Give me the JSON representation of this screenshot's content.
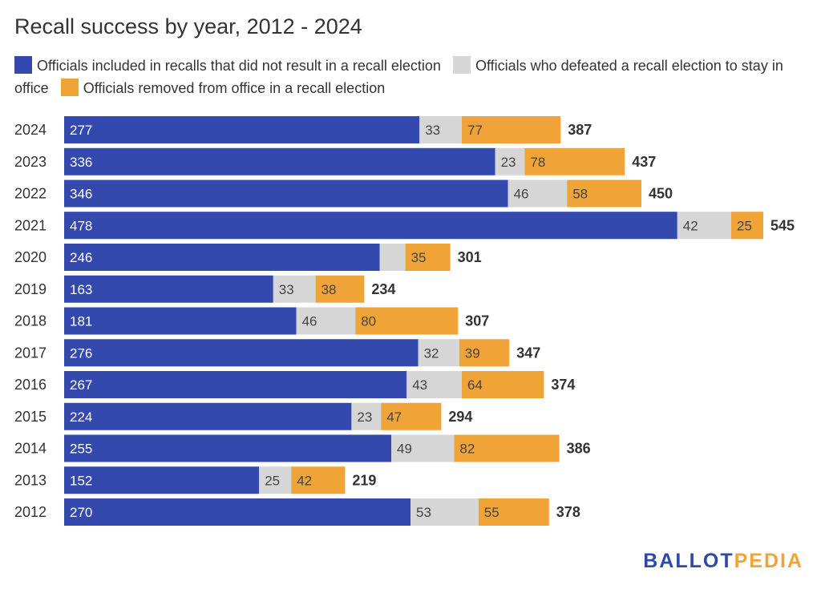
{
  "title": "Recall success by year, 2012 - 2024",
  "logo": {
    "part1": "BALLOT",
    "part2": "PEDIA"
  },
  "chart_data": {
    "type": "bar",
    "orientation": "horizontal",
    "stacked": true,
    "title": "Recall success by year, 2012 - 2024",
    "legend_position": "top",
    "grid": false,
    "categories": [
      "2024",
      "2023",
      "2022",
      "2021",
      "2020",
      "2019",
      "2018",
      "2017",
      "2016",
      "2015",
      "2014",
      "2013",
      "2012"
    ],
    "series": [
      {
        "name": "Officials included in recalls that did not result in a recall election",
        "color": "#3349ad",
        "values": [
          277,
          336,
          346,
          478,
          246,
          163,
          181,
          276,
          267,
          224,
          255,
          152,
          270
        ],
        "labels": [
          "277",
          "336",
          "346",
          "478",
          "246",
          "163",
          "181",
          "276",
          "267",
          "224",
          "255",
          "152",
          "270"
        ]
      },
      {
        "name": "Officials who defeated a recall election to stay in office",
        "color": "#d6d6d6",
        "values": [
          33,
          23,
          46,
          42,
          20,
          33,
          46,
          32,
          43,
          23,
          49,
          25,
          53
        ],
        "labels": [
          "33",
          "23",
          "46",
          "42",
          "",
          "33",
          "46",
          "32",
          "43",
          "23",
          "49",
          "25",
          "53"
        ]
      },
      {
        "name": "Officials removed from office in a recall election",
        "color": "#f0a437",
        "values": [
          77,
          78,
          58,
          25,
          35,
          38,
          80,
          39,
          64,
          47,
          82,
          42,
          55
        ],
        "labels": [
          "77",
          "78",
          "58",
          "25",
          "35",
          "38",
          "80",
          "39",
          "64",
          "47",
          "82",
          "42",
          "55"
        ]
      }
    ],
    "totals": [
      "387",
      "437",
      "450",
      "545",
      "301",
      "234",
      "307",
      "347",
      "374",
      "294",
      "386",
      "219",
      "378"
    ]
  }
}
